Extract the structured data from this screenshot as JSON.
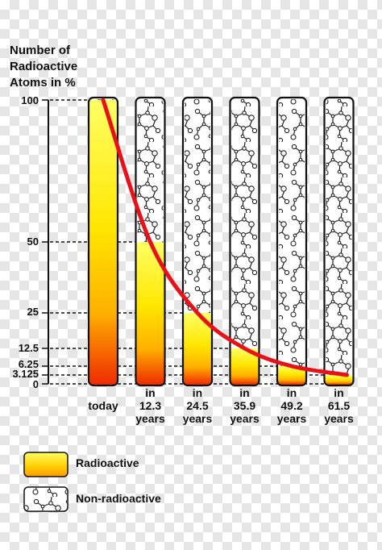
{
  "chart_data": {
    "type": "bar",
    "title": "",
    "ylabel": [
      "Number of",
      "Radioactive",
      "Atoms in %"
    ],
    "ylim": [
      0,
      100
    ],
    "y_ticks": [
      {
        "value": 100,
        "label": "100"
      },
      {
        "value": 50,
        "label": "50"
      },
      {
        "value": 25,
        "label": "25"
      },
      {
        "value": 12.5,
        "label": "12.5"
      },
      {
        "value": 6.25,
        "label": "6.25"
      },
      {
        "value": 3.125,
        "label": "3.125"
      },
      {
        "value": 0,
        "label": "0"
      }
    ],
    "categories": [
      [
        "today"
      ],
      [
        "in",
        "12.3",
        "years"
      ],
      [
        "in",
        "24.5",
        "years"
      ],
      [
        "in",
        "35.9",
        "years"
      ],
      [
        "in",
        "49.2",
        "years"
      ],
      [
        "in",
        "61.5",
        "years"
      ]
    ],
    "values": [
      100,
      50,
      25,
      12.5,
      6.25,
      3.125
    ],
    "series": [
      {
        "name": "Radioactive",
        "values": [
          100,
          50,
          25,
          12.5,
          6.25,
          3.125
        ]
      }
    ],
    "curve": "exponential decay",
    "colors": {
      "radioactive_top": "#ffff66",
      "radioactive_mid": "#ffcc00",
      "radioactive_bottom": "#ee2a00",
      "curve": "#e8111a",
      "non_radioactive_bg": "#ffffff",
      "molecule_stroke": "#222222"
    },
    "legend": {
      "placement": "bottom-left",
      "items": [
        {
          "label": "Radioactive",
          "swatch": "radioactive-gradient"
        },
        {
          "label": "Non-radioactive",
          "swatch": "molecule-pattern"
        }
      ]
    },
    "grid": false
  }
}
